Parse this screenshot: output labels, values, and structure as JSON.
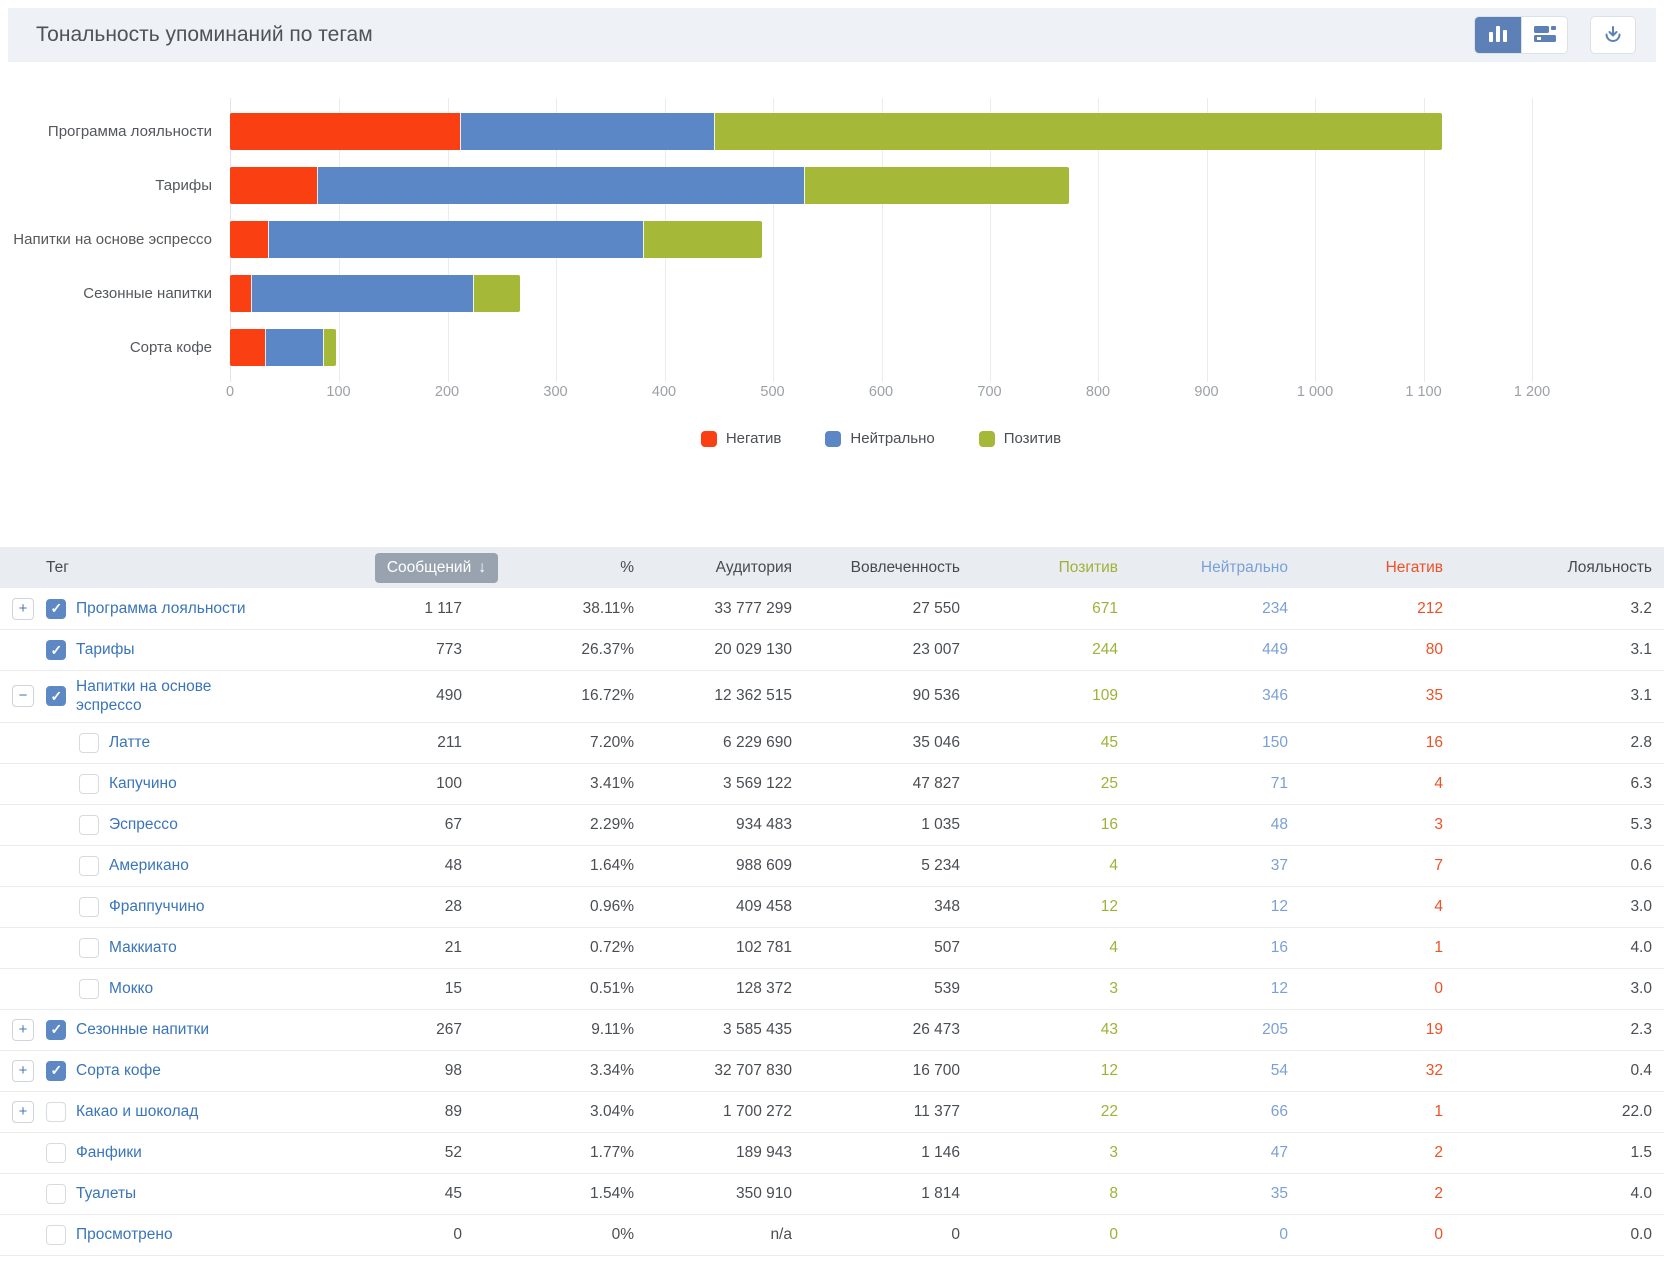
{
  "header": {
    "title": "Тональность упоминаний по тегам"
  },
  "chart_data": {
    "type": "bar",
    "orientation": "horizontal",
    "stacked": true,
    "title": "Тональность упоминаний по тегам",
    "categories": [
      "Программа лояльности",
      "Тарифы",
      "Напитки на основе эспрессо",
      "Сезонные напитки",
      "Сорта кофе"
    ],
    "series": [
      {
        "name": "Негатив",
        "color": "#fa3f12",
        "values": [
          212,
          80,
          35,
          19,
          32
        ]
      },
      {
        "name": "Нейтрально",
        "color": "#5b87c6",
        "values": [
          234,
          449,
          346,
          205,
          54
        ]
      },
      {
        "name": "Позитив",
        "color": "#a5b837",
        "values": [
          671,
          244,
          109,
          43,
          12
        ]
      }
    ],
    "xlim": [
      0,
      1200
    ],
    "xticks": [
      "0",
      "100",
      "200",
      "300",
      "400",
      "500",
      "600",
      "700",
      "800",
      "900",
      "1 000",
      "1 100",
      "1 200"
    ],
    "grid": "vertical",
    "legend_position": "bottom"
  },
  "table": {
    "sort_arrow": "↓",
    "columns": [
      {
        "label": "Тег"
      },
      {
        "label": "Сообщений",
        "sorted": "desc"
      },
      {
        "label": "%"
      },
      {
        "label": "Аудитория"
      },
      {
        "label": "Вовлеченность"
      },
      {
        "label": "Позитив",
        "color": "#9eb237"
      },
      {
        "label": "Нейтрально",
        "color": "#7aa0d8"
      },
      {
        "label": "Негатив",
        "color": "#ee5126"
      },
      {
        "label": "Лояльность"
      }
    ],
    "rows": [
      {
        "tag": "Программа лояльности",
        "expander": "plus",
        "checked": true,
        "child": false,
        "messages": "1 117",
        "percent": "38.11%",
        "audience": "33 777 299",
        "engagement": "27 550",
        "positive": "671",
        "neutral": "234",
        "negative": "212",
        "loyalty": "3.2"
      },
      {
        "tag": "Тарифы",
        "expander": null,
        "checked": true,
        "child": false,
        "messages": "773",
        "percent": "26.37%",
        "audience": "20 029 130",
        "engagement": "23 007",
        "positive": "244",
        "neutral": "449",
        "negative": "80",
        "loyalty": "3.1"
      },
      {
        "tag": "Напитки на основе эспрессо",
        "expander": "minus",
        "checked": true,
        "child": false,
        "messages": "490",
        "percent": "16.72%",
        "audience": "12 362 515",
        "engagement": "90 536",
        "positive": "109",
        "neutral": "346",
        "negative": "35",
        "loyalty": "3.1"
      },
      {
        "tag": "Латте",
        "expander": null,
        "checked": false,
        "child": true,
        "messages": "211",
        "percent": "7.20%",
        "audience": "6 229 690",
        "engagement": "35 046",
        "positive": "45",
        "neutral": "150",
        "negative": "16",
        "loyalty": "2.8"
      },
      {
        "tag": "Капучино",
        "expander": null,
        "checked": false,
        "child": true,
        "messages": "100",
        "percent": "3.41%",
        "audience": "3 569 122",
        "engagement": "47 827",
        "positive": "25",
        "neutral": "71",
        "negative": "4",
        "loyalty": "6.3"
      },
      {
        "tag": "Эспрессо",
        "expander": null,
        "checked": false,
        "child": true,
        "messages": "67",
        "percent": "2.29%",
        "audience": "934 483",
        "engagement": "1 035",
        "positive": "16",
        "neutral": "48",
        "negative": "3",
        "loyalty": "5.3"
      },
      {
        "tag": "Американо",
        "expander": null,
        "checked": false,
        "child": true,
        "messages": "48",
        "percent": "1.64%",
        "audience": "988 609",
        "engagement": "5 234",
        "positive": "4",
        "neutral": "37",
        "negative": "7",
        "loyalty": "0.6"
      },
      {
        "tag": "Фраппуччино",
        "expander": null,
        "checked": false,
        "child": true,
        "messages": "28",
        "percent": "0.96%",
        "audience": "409 458",
        "engagement": "348",
        "positive": "12",
        "neutral": "12",
        "negative": "4",
        "loyalty": "3.0"
      },
      {
        "tag": "Маккиато",
        "expander": null,
        "checked": false,
        "child": true,
        "messages": "21",
        "percent": "0.72%",
        "audience": "102 781",
        "engagement": "507",
        "positive": "4",
        "neutral": "16",
        "negative": "1",
        "loyalty": "4.0"
      },
      {
        "tag": "Мокко",
        "expander": null,
        "checked": false,
        "child": true,
        "messages": "15",
        "percent": "0.51%",
        "audience": "128 372",
        "engagement": "539",
        "positive": "3",
        "neutral": "12",
        "negative": "0",
        "loyalty": "3.0"
      },
      {
        "tag": "Сезонные напитки",
        "expander": "plus",
        "checked": true,
        "child": false,
        "messages": "267",
        "percent": "9.11%",
        "audience": "3 585 435",
        "engagement": "26 473",
        "positive": "43",
        "neutral": "205",
        "negative": "19",
        "loyalty": "2.3"
      },
      {
        "tag": "Сорта кофе",
        "expander": "plus",
        "checked": true,
        "child": false,
        "messages": "98",
        "percent": "3.34%",
        "audience": "32 707 830",
        "engagement": "16 700",
        "positive": "12",
        "neutral": "54",
        "negative": "32",
        "loyalty": "0.4"
      },
      {
        "tag": "Какао и шоколад",
        "expander": "plus",
        "checked": false,
        "child": false,
        "messages": "89",
        "percent": "3.04%",
        "audience": "1 700 272",
        "engagement": "11 377",
        "positive": "22",
        "neutral": "66",
        "negative": "1",
        "loyalty": "22.0"
      },
      {
        "tag": "Фанфики",
        "expander": null,
        "checked": false,
        "child": false,
        "messages": "52",
        "percent": "1.77%",
        "audience": "189 943",
        "engagement": "1 146",
        "positive": "3",
        "neutral": "47",
        "negative": "2",
        "loyalty": "1.5"
      },
      {
        "tag": "Туалеты",
        "expander": null,
        "checked": false,
        "child": false,
        "messages": "45",
        "percent": "1.54%",
        "audience": "350 910",
        "engagement": "1 814",
        "positive": "8",
        "neutral": "35",
        "negative": "2",
        "loyalty": "4.0"
      },
      {
        "tag": "Просмотрено",
        "expander": null,
        "checked": false,
        "child": false,
        "messages": "0",
        "percent": "0%",
        "audience": "n/a",
        "engagement": "0",
        "positive": "0",
        "neutral": "0",
        "negative": "0",
        "loyalty": "0.0"
      }
    ]
  }
}
